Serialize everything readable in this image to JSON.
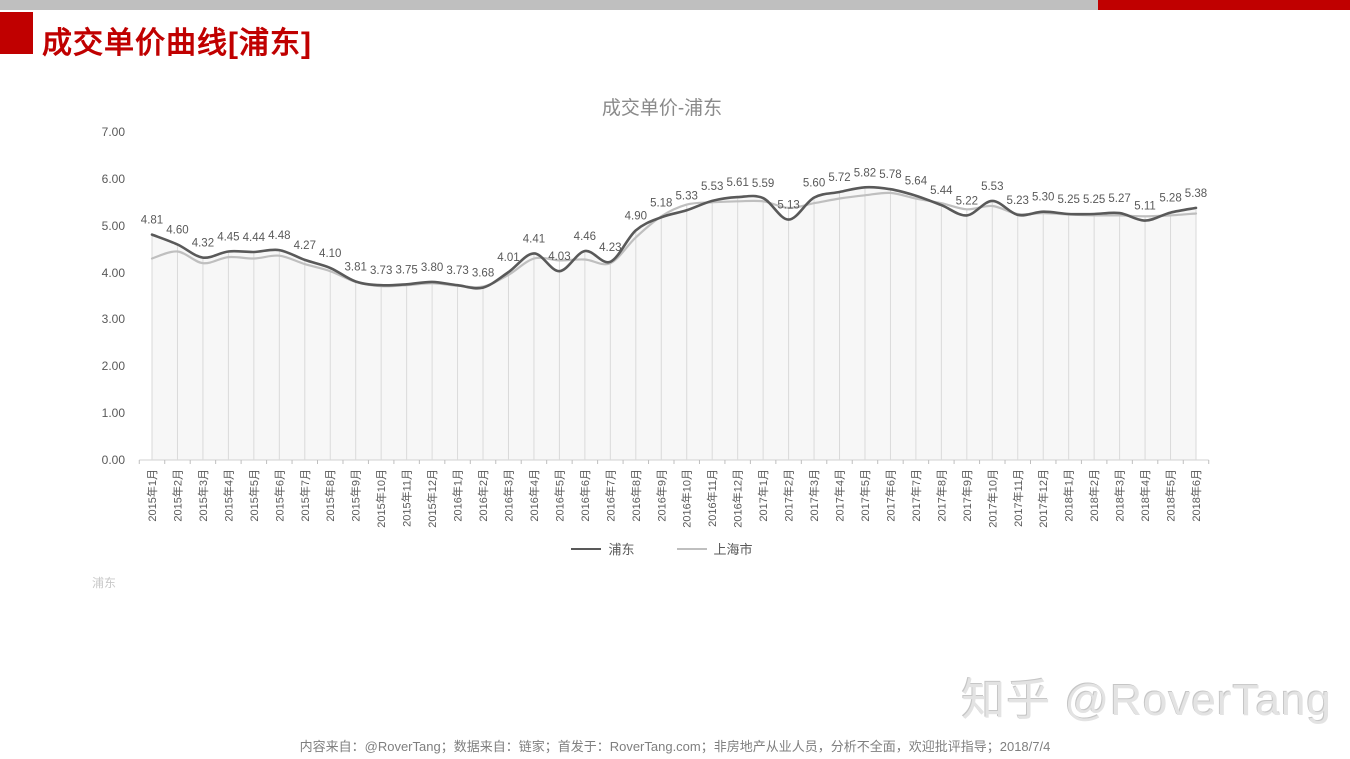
{
  "page": {
    "title": "成交单价曲线[浦东]",
    "corner_label": "浦东",
    "footer": "内容来自：@RoverTang；数据来自：链家；首发于：RoverTang.com；非房地产从业人员，分析不全面，欢迎批评指导；2018/7/4",
    "watermark": "知乎 @RoverTang"
  },
  "colors": {
    "accent_red": "#c00000",
    "top_bar_gray": "#bfbfbf",
    "pudong_line": "#595959",
    "shanghai_line": "#bfbfbf",
    "dropline": "#dadada",
    "axis_line": "#d9d9d9",
    "tick_mark": "#bfbfbf",
    "data_label_text": "#595959",
    "axis_text": "#595959",
    "area_fill": "#f4f4f4"
  },
  "chart_data": {
    "type": "line",
    "title": "成交单价-浦东",
    "xlabel": "",
    "ylabel": "",
    "ylim": [
      0,
      7
    ],
    "ytick_labels": [
      "0.00",
      "1.00",
      "2.00",
      "3.00",
      "4.00",
      "5.00",
      "6.00",
      "7.00"
    ],
    "grid": "vertical-droplines-only",
    "legend_position": "bottom",
    "line_style": "smooth",
    "categories": [
      "2015年1月",
      "2015年2月",
      "2015年3月",
      "2015年4月",
      "2015年5月",
      "2015年6月",
      "2015年7月",
      "2015年8月",
      "2015年9月",
      "2015年10月",
      "2015年11月",
      "2015年12月",
      "2016年1月",
      "2016年2月",
      "2016年3月",
      "2016年4月",
      "2016年5月",
      "2016年6月",
      "2016年7月",
      "2016年8月",
      "2016年9月",
      "2016年10月",
      "2016年11月",
      "2016年12月",
      "2017年1月",
      "2017年2月",
      "2017年3月",
      "2017年4月",
      "2017年5月",
      "2017年6月",
      "2017年7月",
      "2017年8月",
      "2017年9月",
      "2017年10月",
      "2017年11月",
      "2017年12月",
      "2018年1月",
      "2018年2月",
      "2018年3月",
      "2018年4月",
      "2018年5月",
      "2018年6月"
    ],
    "series": [
      {
        "name": "浦东",
        "color": "#595959",
        "stroke_width": 2.6,
        "data_labels_shown": true,
        "values": [
          4.81,
          4.6,
          4.32,
          4.45,
          4.44,
          4.48,
          4.27,
          4.1,
          3.81,
          3.73,
          3.75,
          3.8,
          3.73,
          3.68,
          4.01,
          4.41,
          4.03,
          4.46,
          4.23,
          4.9,
          5.18,
          5.33,
          5.53,
          5.61,
          5.59,
          5.13,
          5.6,
          5.72,
          5.82,
          5.78,
          5.64,
          5.44,
          5.22,
          5.53,
          5.23,
          5.3,
          5.25,
          5.25,
          5.27,
          5.11,
          5.28,
          5.38
        ]
      },
      {
        "name": "上海市",
        "color": "#bfbfbf",
        "stroke_width": 2.2,
        "data_labels_shown": false,
        "values_estimated_from_pixels": true,
        "values": [
          4.3,
          4.45,
          4.2,
          4.33,
          4.3,
          4.36,
          4.18,
          4.03,
          3.8,
          3.71,
          3.73,
          3.77,
          3.72,
          3.7,
          3.95,
          4.3,
          4.26,
          4.28,
          4.2,
          4.75,
          5.2,
          5.45,
          5.5,
          5.52,
          5.52,
          5.38,
          5.48,
          5.58,
          5.65,
          5.7,
          5.58,
          5.48,
          5.35,
          5.42,
          5.25,
          5.27,
          5.24,
          5.22,
          5.22,
          5.2,
          5.22,
          5.26
        ]
      }
    ]
  }
}
